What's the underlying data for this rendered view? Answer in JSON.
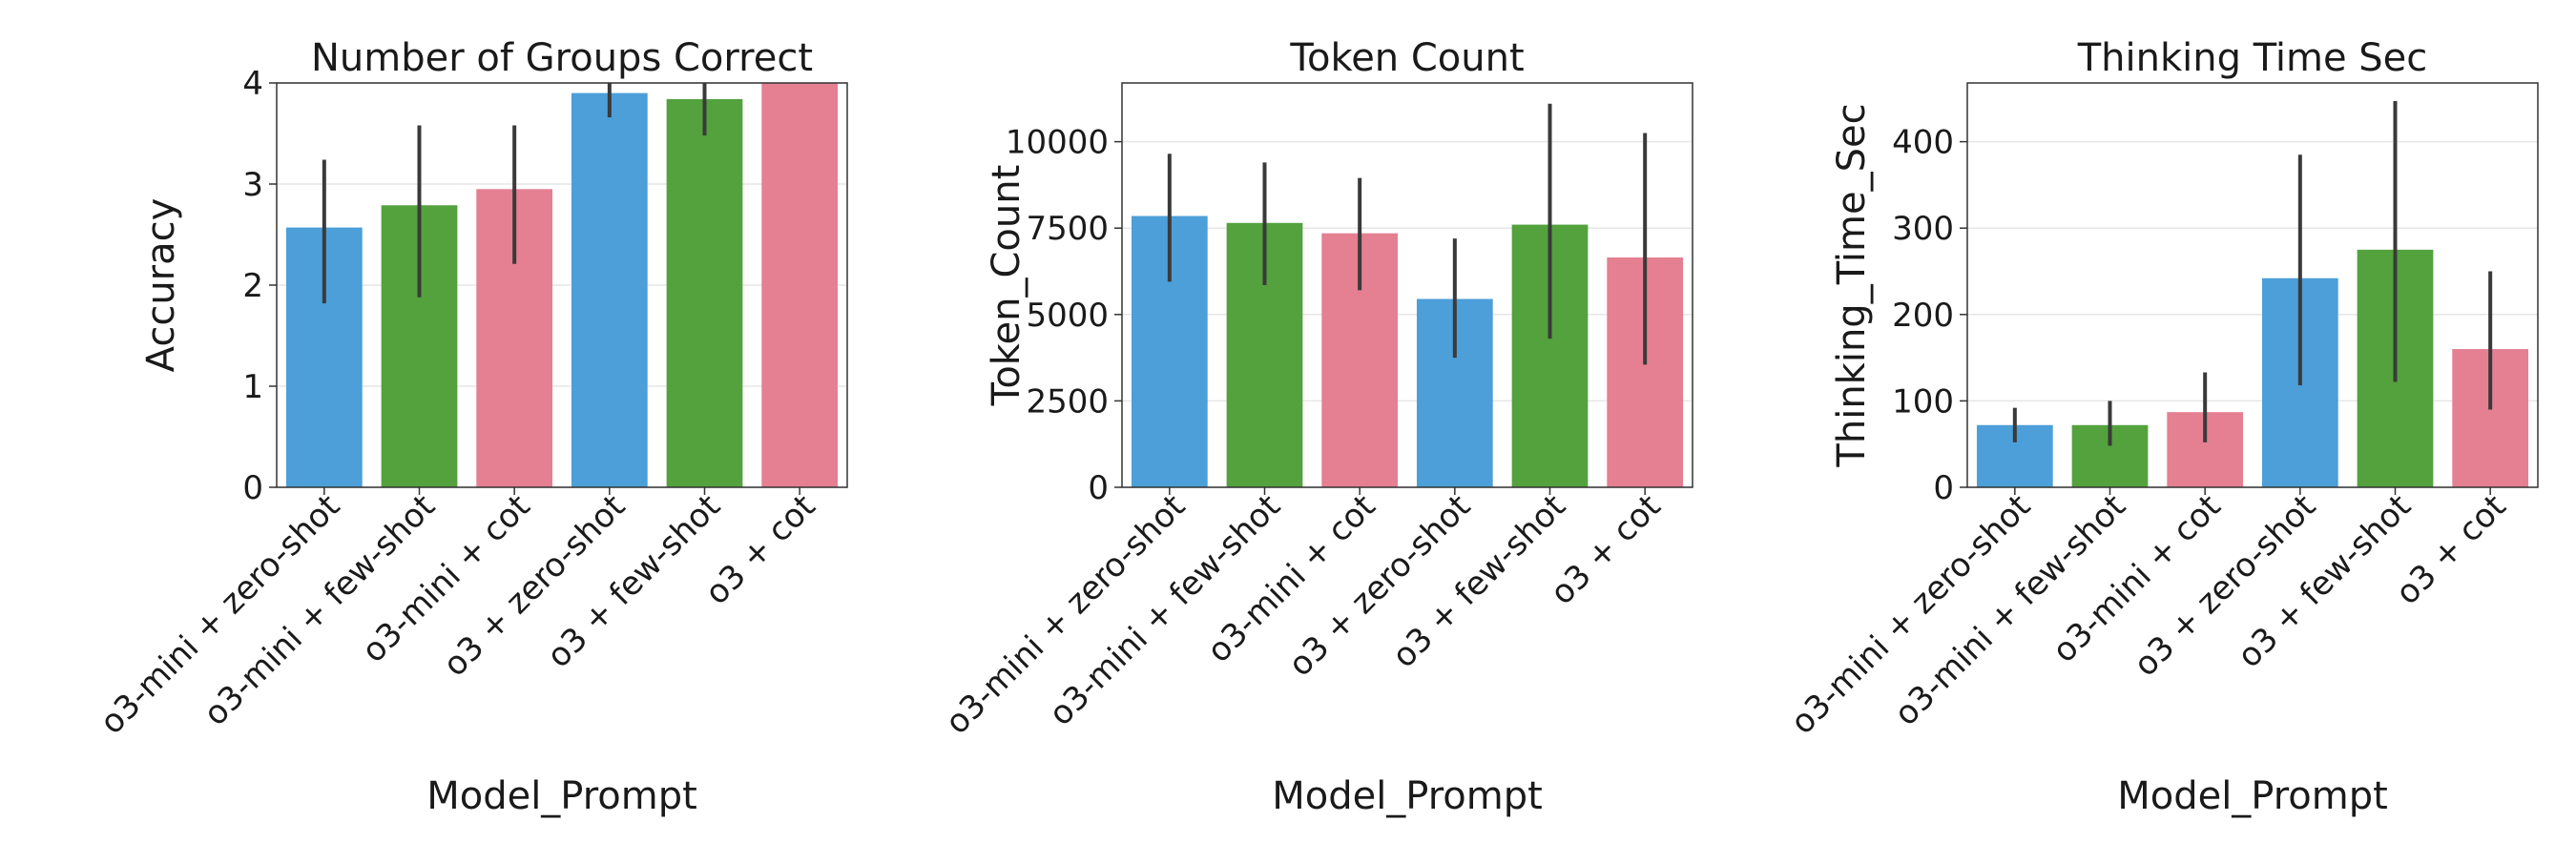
{
  "chart_data": [
    {
      "type": "bar",
      "title": "Number of Groups Correct",
      "xlabel": "Model_Prompt",
      "ylabel": "Accuracy",
      "ylim": [
        0,
        4
      ],
      "yticks": [
        0,
        1,
        2,
        3,
        4
      ],
      "grid": true,
      "categories": [
        "o3-mini + zero-shot",
        "o3-mini + few-shot",
        "o3-mini + cot",
        "o3 + zero-shot",
        "o3 + few-shot",
        "o3 + cot"
      ],
      "values": [
        2.57,
        2.79,
        2.95,
        3.9,
        3.84,
        4.0
      ],
      "error_low": [
        1.82,
        1.88,
        2.21,
        3.66,
        3.48,
        4.0
      ],
      "error_high": [
        3.24,
        3.58,
        3.58,
        4.0,
        4.0,
        4.0
      ]
    },
    {
      "type": "bar",
      "title": "Token Count",
      "xlabel": "Model_Prompt",
      "ylabel": "Token_Count",
      "ylim": [
        0,
        11700
      ],
      "yticks": [
        0,
        2500,
        5000,
        7500,
        10000
      ],
      "grid": true,
      "categories": [
        "o3-mini + zero-shot",
        "o3-mini + few-shot",
        "o3-mini + cot",
        "o3 + zero-shot",
        "o3 + few-shot",
        "o3 + cot"
      ],
      "values": [
        7850,
        7650,
        7350,
        5450,
        7600,
        6650
      ],
      "error_low": [
        5950,
        5850,
        5700,
        3750,
        4300,
        3550
      ],
      "error_high": [
        9650,
        9400,
        8950,
        7200,
        11100,
        10250
      ]
    },
    {
      "type": "bar",
      "title": "Thinking Time Sec",
      "xlabel": "Model_Prompt",
      "ylabel": "Thinking_Time_Sec",
      "ylim": [
        0,
        468
      ],
      "yticks": [
        0,
        100,
        200,
        300,
        400
      ],
      "grid": true,
      "categories": [
        "o3-mini + zero-shot",
        "o3-mini + few-shot",
        "o3-mini + cot",
        "o3 + zero-shot",
        "o3 + few-shot",
        "o3 + cot"
      ],
      "values": [
        72,
        72,
        87,
        242,
        275,
        160
      ],
      "error_low": [
        52,
        48,
        52,
        118,
        122,
        90
      ],
      "error_high": [
        92,
        100,
        133,
        385,
        447,
        250
      ]
    }
  ],
  "colors": [
    "#4c9fd8",
    "#53a23d",
    "#e57f92",
    "#4c9fd8",
    "#53a23d",
    "#e57f92"
  ],
  "error_color": "#3a3a3a"
}
